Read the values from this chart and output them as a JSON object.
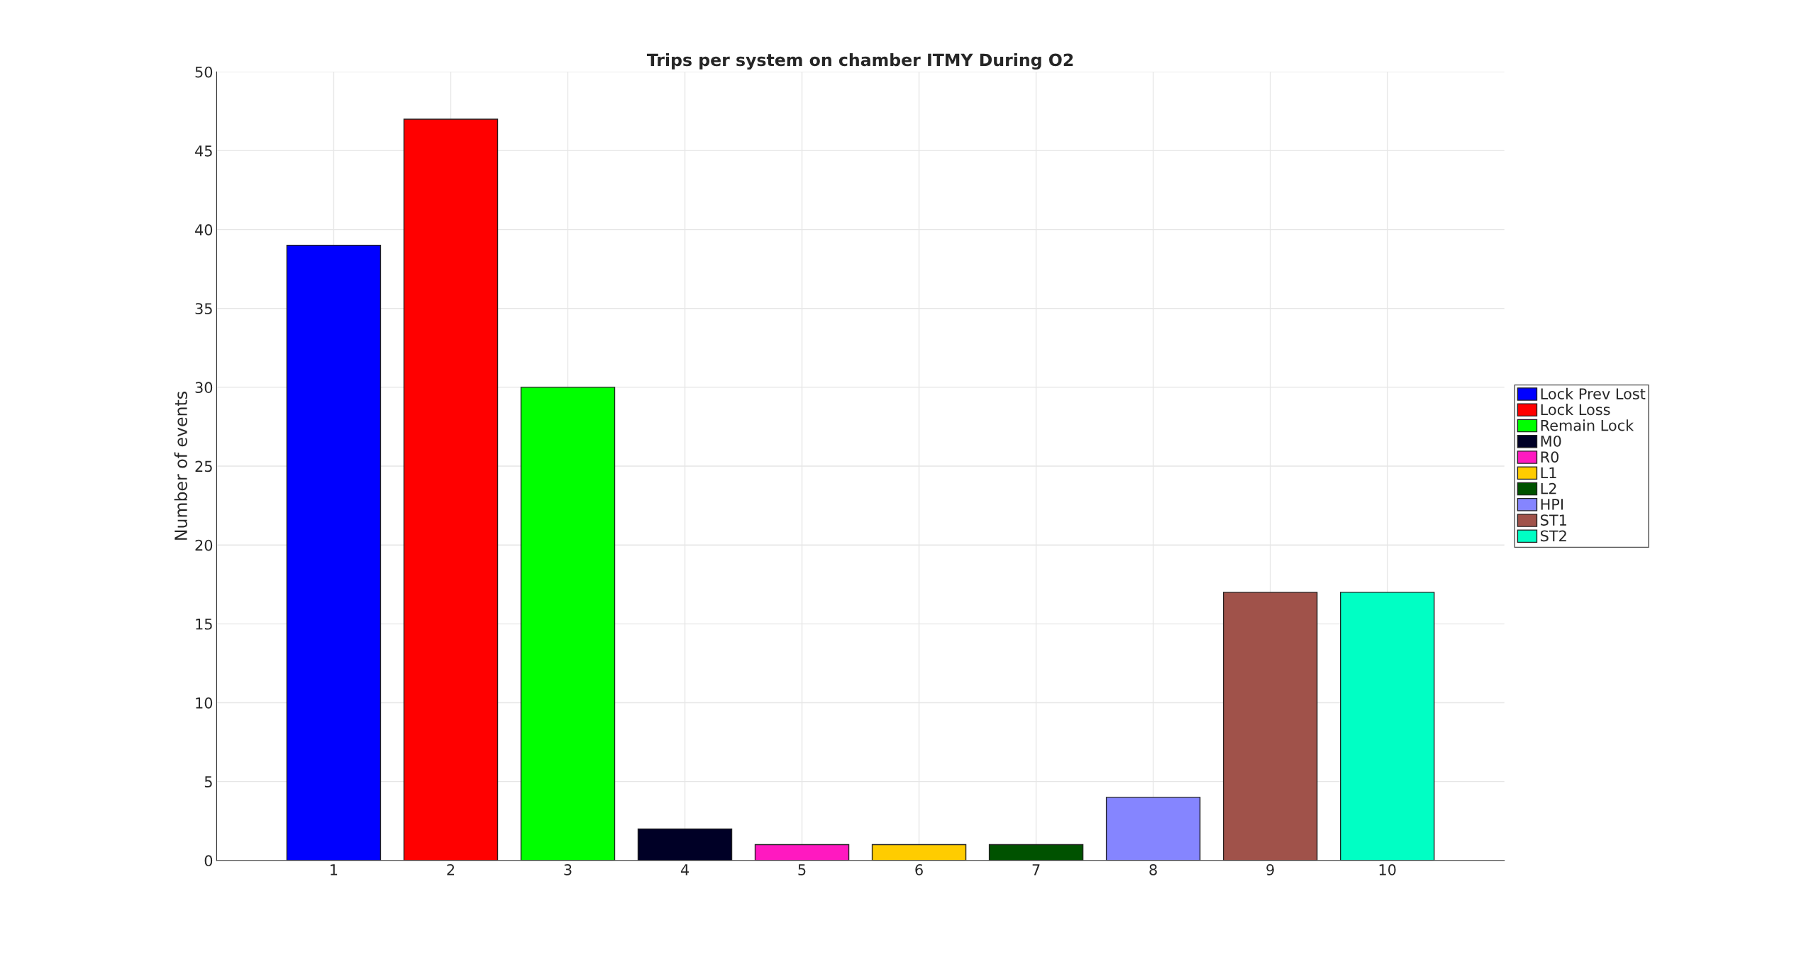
{
  "chart_data": {
    "type": "bar",
    "title": "Trips per system on chamber ITMY During O2",
    "ylabel": "Number of events",
    "xlim": [
      0,
      11
    ],
    "xticks": [
      1,
      2,
      3,
      4,
      5,
      6,
      7,
      8,
      9,
      10
    ],
    "ylim": [
      0,
      50
    ],
    "yticks": [
      0,
      5,
      10,
      15,
      20,
      25,
      30,
      35,
      40,
      45,
      50
    ],
    "grid": true,
    "legend": "right",
    "series": [
      {
        "name": "Lock Prev Lost",
        "color": "#0000ff",
        "x": [
          1
        ],
        "values": [
          39
        ]
      },
      {
        "name": "Lock Loss",
        "color": "#ff0000",
        "x": [
          2
        ],
        "values": [
          47
        ]
      },
      {
        "name": "Remain Lock",
        "color": "#00ff00",
        "x": [
          3
        ],
        "values": [
          30
        ]
      },
      {
        "name": "M0",
        "color": "#000026",
        "x": [
          4
        ],
        "values": [
          2
        ]
      },
      {
        "name": "R0",
        "color": "#ff19c0",
        "x": [
          5
        ],
        "values": [
          1
        ]
      },
      {
        "name": "L1",
        "color": "#ffcc00",
        "x": [
          6
        ],
        "values": [
          1
        ]
      },
      {
        "name": "L2",
        "color": "#005200",
        "x": [
          7
        ],
        "values": [
          1
        ]
      },
      {
        "name": "HPI",
        "color": "#8585ff",
        "x": [
          8
        ],
        "values": [
          4
        ]
      },
      {
        "name": "ST1",
        "color": "#a0524a",
        "x": [
          9
        ],
        "values": [
          17
        ]
      },
      {
        "name": "ST2",
        "color": "#00ffc4",
        "x": [
          10
        ],
        "values": [
          17
        ]
      }
    ]
  }
}
